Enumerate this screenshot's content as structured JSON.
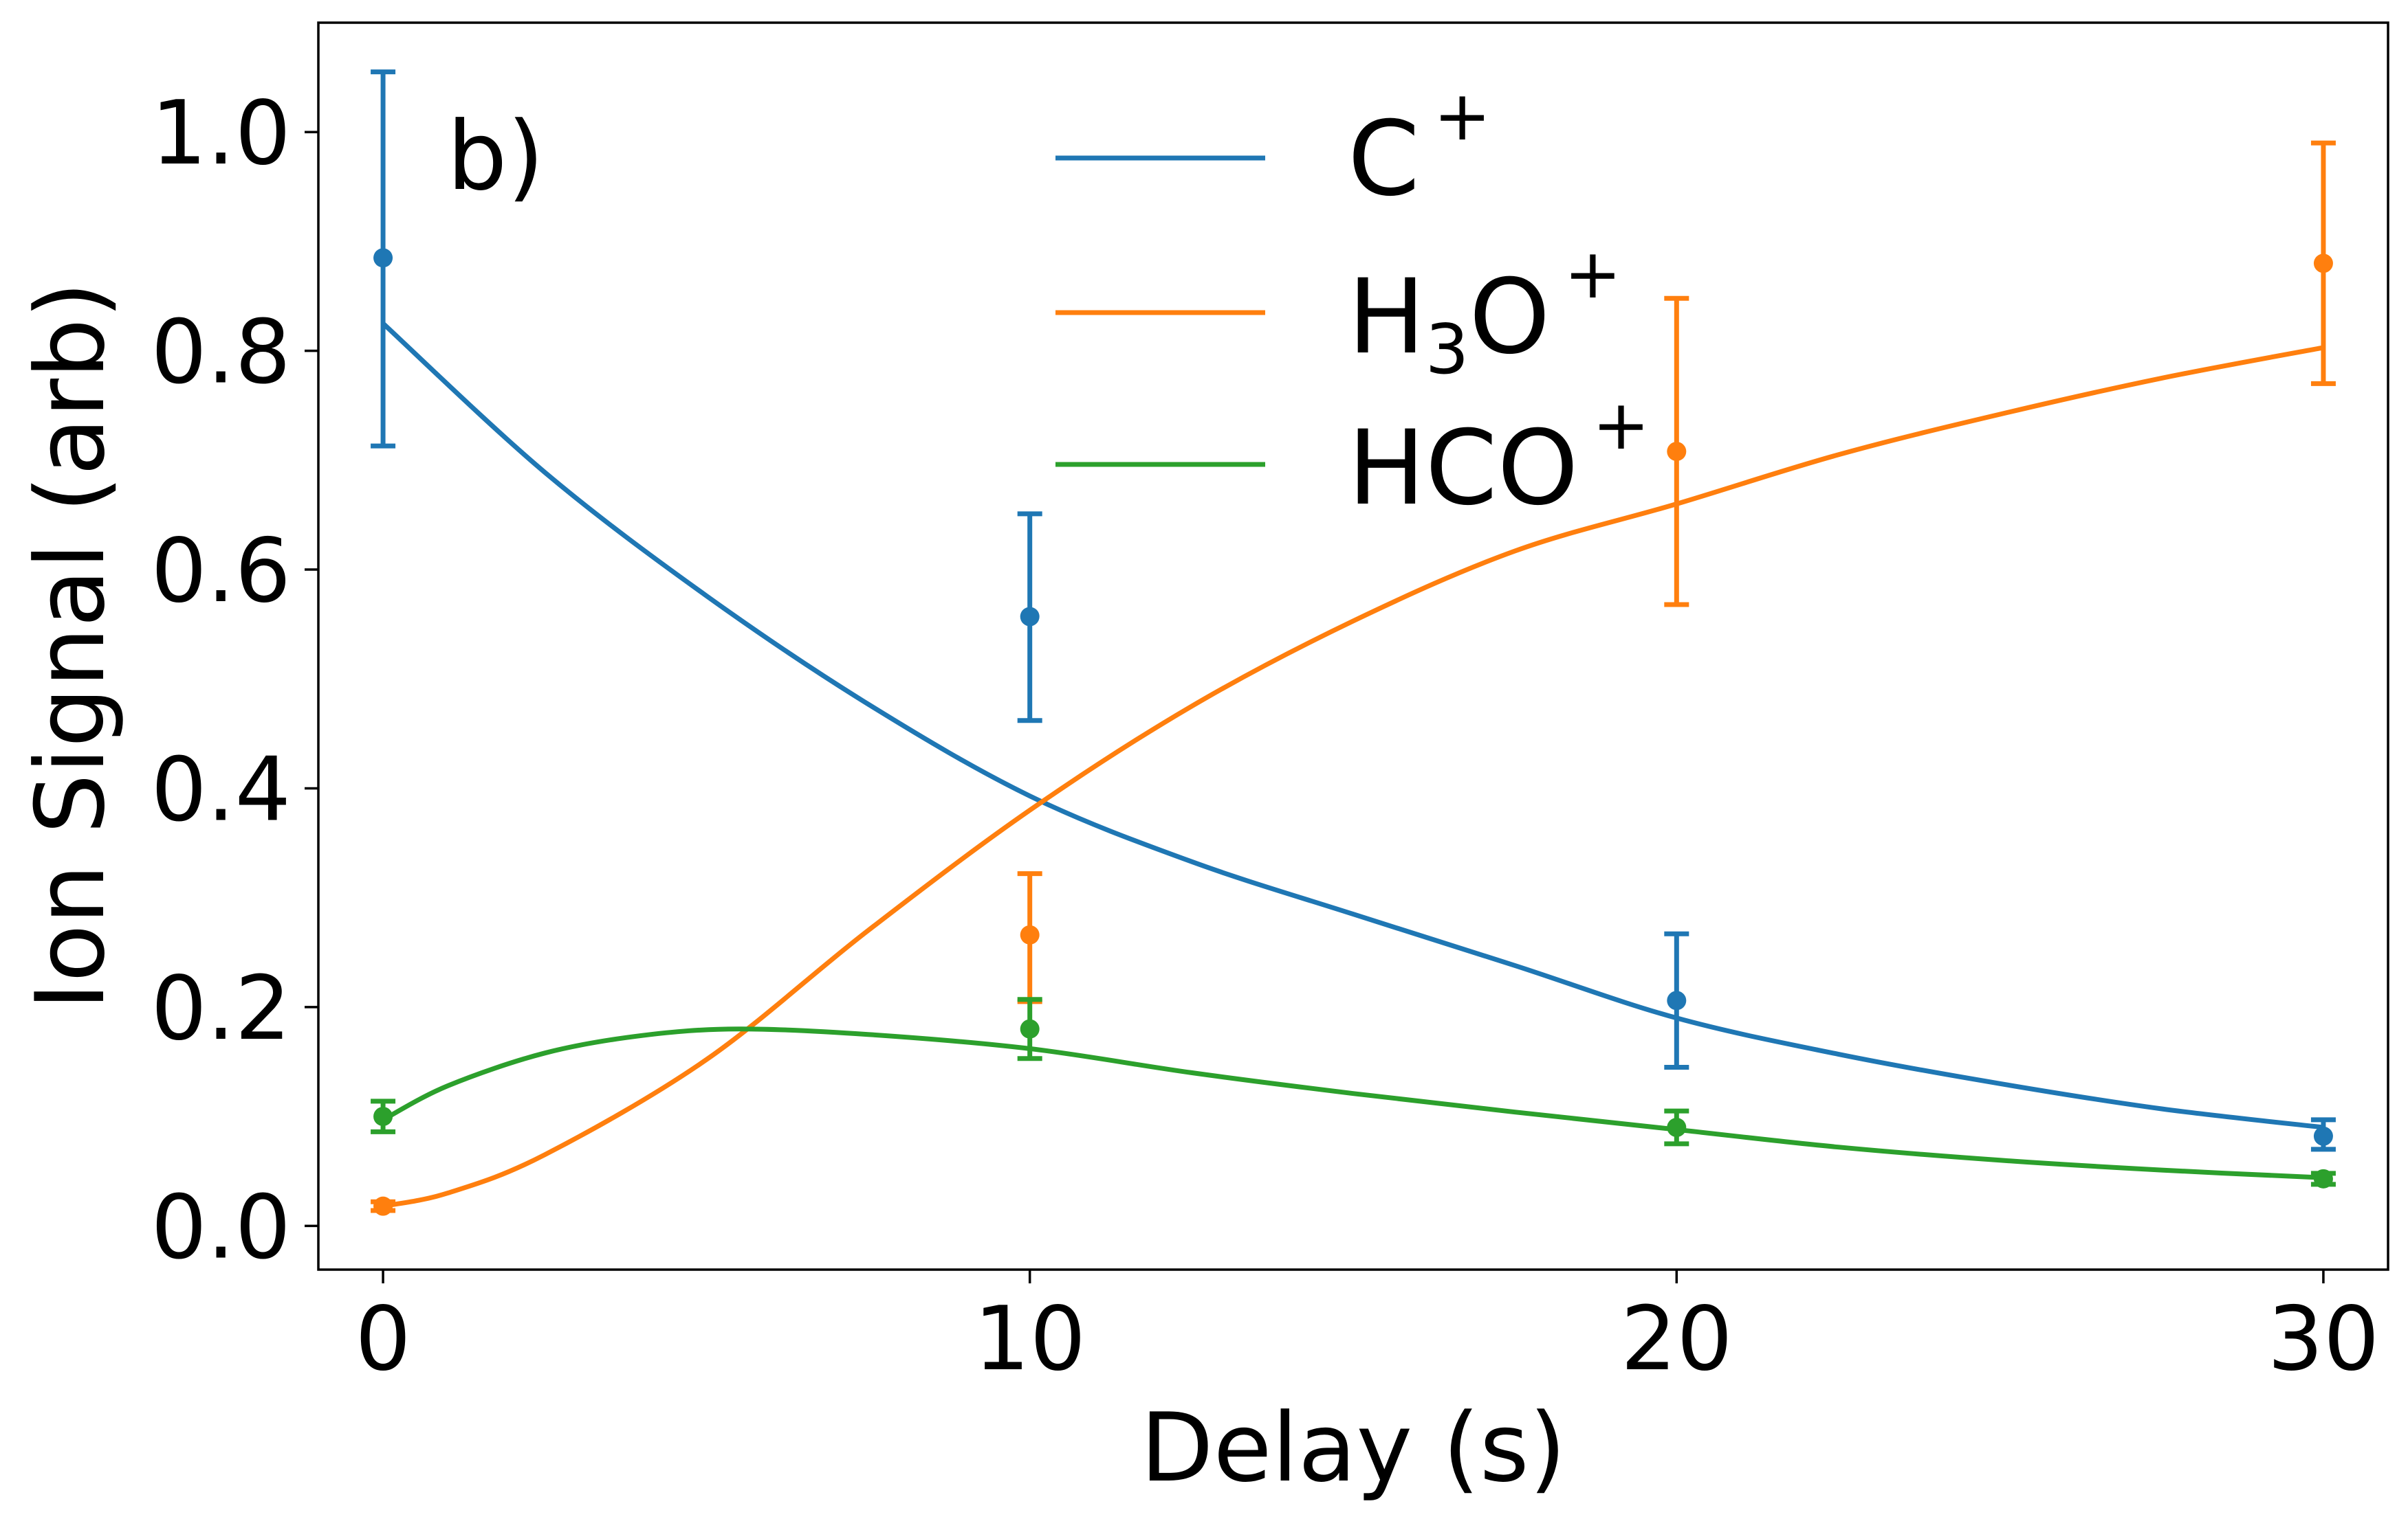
{
  "chart_data": {
    "type": "line",
    "panel_label": "b)",
    "xlabel": "Delay (s)",
    "ylabel": "Ion Signal (arb)",
    "xlim": [
      -1,
      31
    ],
    "ylim": [
      -0.04,
      1.1
    ],
    "xticks": [
      0,
      10,
      20,
      30
    ],
    "xtick_labels": [
      "0",
      "10",
      "20",
      "30"
    ],
    "yticks": [
      0.0,
      0.2,
      0.4,
      0.6,
      0.8,
      1.0
    ],
    "ytick_labels": [
      "0.0",
      "0.2",
      "0.4",
      "0.6",
      "0.8",
      "1.0"
    ],
    "grid": false,
    "legend_position": "top-center",
    "series": [
      {
        "name": "C",
        "superscript": "+",
        "color": "#1f77b4",
        "points": {
          "x": [
            0,
            10,
            20,
            30
          ],
          "y": [
            0.885,
            0.557,
            0.206,
            0.082
          ],
          "yerr_low": [
            0.713,
            0.462,
            0.145,
            0.07
          ],
          "yerr_high": [
            1.055,
            0.651,
            0.267,
            0.097
          ]
        },
        "fit": {
          "x": [
            0,
            2.5,
            5,
            7.5,
            10,
            12.5,
            15,
            17.5,
            20,
            22.5,
            25,
            27.5,
            30
          ],
          "y": [
            0.825,
            0.689,
            0.576,
            0.477,
            0.393,
            0.333,
            0.285,
            0.238,
            0.19,
            0.157,
            0.13,
            0.107,
            0.09
          ]
        }
      },
      {
        "name": "H",
        "name_subscript": "3",
        "name_suffix": "O",
        "superscript": "+",
        "color": "#ff7f0e",
        "points": {
          "x": [
            0,
            10,
            20,
            30
          ],
          "y": [
            0.018,
            0.266,
            0.708,
            0.88
          ],
          "yerr_low": [
            0.014,
            0.205,
            0.568,
            0.77
          ],
          "yerr_high": [
            0.022,
            0.322,
            0.848,
            0.99
          ]
        },
        "fit": {
          "x": [
            0,
            1,
            2.5,
            5,
            7.5,
            10,
            12.5,
            15,
            17.5,
            20,
            22.5,
            25,
            27.5,
            30
          ],
          "y": [
            0.018,
            0.03,
            0.065,
            0.152,
            0.27,
            0.38,
            0.475,
            0.553,
            0.617,
            0.66,
            0.705,
            0.742,
            0.775,
            0.803
          ]
        }
      },
      {
        "name": "HCO",
        "superscript": "+",
        "color": "#2ca02c",
        "points": {
          "x": [
            0,
            10,
            20,
            30
          ],
          "y": [
            0.1,
            0.18,
            0.09,
            0.043
          ],
          "yerr_low": [
            0.086,
            0.153,
            0.075,
            0.038
          ],
          "yerr_high": [
            0.114,
            0.207,
            0.105,
            0.048
          ]
        },
        "fit": {
          "x": [
            0,
            1,
            2.5,
            4,
            5.5,
            7.5,
            10,
            12.5,
            15,
            17.5,
            20,
            22.5,
            25,
            27.5,
            30
          ],
          "y": [
            0.097,
            0.128,
            0.158,
            0.174,
            0.18,
            0.175,
            0.162,
            0.14,
            0.121,
            0.104,
            0.088,
            0.072,
            0.06,
            0.051,
            0.044
          ]
        }
      }
    ]
  }
}
